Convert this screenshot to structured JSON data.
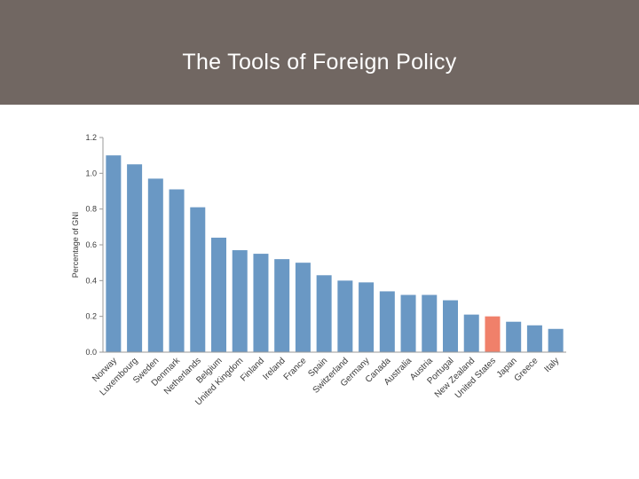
{
  "slide": {
    "title": "The Tools of Foreign Policy"
  },
  "colors": {
    "header_bg": "#716762",
    "bar_default": "#6a98c4",
    "bar_highlight": "#f0806a",
    "axis": "#9a9a9a"
  },
  "chart_data": {
    "type": "bar",
    "title": "",
    "xlabel": "",
    "ylabel": "Percentage of GNI",
    "ylim": [
      0,
      1.2
    ],
    "yticks": [
      "0.0",
      "0.2",
      "0.4",
      "0.6",
      "0.8",
      "1.0",
      "1.2"
    ],
    "grid": false,
    "categories": [
      "Norway",
      "Luxembourg",
      "Sweden",
      "Denmark",
      "Netherlands",
      "Belgium",
      "United Kingdom",
      "Finland",
      "Ireland",
      "France",
      "Spain",
      "Switzerland",
      "Germany",
      "Canada",
      "Australia",
      "Austria",
      "Portugal",
      "New Zealand",
      "United States",
      "Japan",
      "Greece",
      "Italy"
    ],
    "values": [
      1.1,
      1.05,
      0.97,
      0.91,
      0.81,
      0.64,
      0.57,
      0.55,
      0.52,
      0.5,
      0.43,
      0.4,
      0.39,
      0.34,
      0.32,
      0.32,
      0.29,
      0.21,
      0.2,
      0.17,
      0.15,
      0.13
    ],
    "highlight": "United States"
  }
}
